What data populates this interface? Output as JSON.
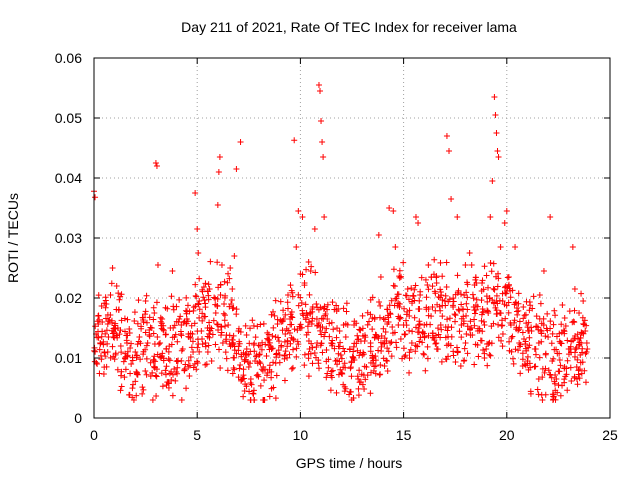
{
  "chart_data": {
    "type": "scatter",
    "title": "Day 211 of 2021, Rate Of TEC Index for receiver lama",
    "xlabel": "GPS time / hours",
    "ylabel": "ROTI / TECUs",
    "xlim": [
      0,
      25
    ],
    "ylim": [
      0,
      0.06
    ],
    "x_ticks": [
      "0",
      "5",
      "10",
      "15",
      "20",
      "25"
    ],
    "y_ticks": [
      "0",
      "0.01",
      "0.02",
      "0.03",
      "0.04",
      "0.05",
      "0.06"
    ],
    "grid": true,
    "marker": "+",
    "color": "#ff0000",
    "series": [
      {
        "name": "ROTI",
        "points": [
          [
            0.0,
            0.0378
          ],
          [
            0.05,
            0.0368
          ],
          [
            0.1,
            0.014
          ],
          [
            0.15,
            0.009
          ],
          [
            0.2,
            0.017
          ],
          [
            0.3,
            0.0125
          ],
          [
            0.4,
            0.016
          ],
          [
            0.5,
            0.011
          ],
          [
            0.6,
            0.019
          ],
          [
            0.7,
            0.0135
          ],
          [
            0.8,
            0.0205
          ],
          [
            0.9,
            0.025
          ],
          [
            1.0,
            0.015
          ],
          [
            1.1,
            0.022
          ],
          [
            1.2,
            0.018
          ],
          [
            1.3,
            0.012
          ],
          [
            1.5,
            0.01
          ],
          [
            1.6,
            0.0125
          ],
          [
            1.8,
            0.009
          ],
          [
            2.0,
            0.011
          ],
          [
            2.2,
            0.0135
          ],
          [
            2.4,
            0.016
          ],
          [
            2.5,
            0.0195
          ],
          [
            2.6,
            0.0125
          ],
          [
            2.8,
            0.015
          ],
          [
            2.9,
            0.0095
          ],
          [
            3.0,
            0.0425
          ],
          [
            3.05,
            0.042
          ],
          [
            3.1,
            0.0255
          ],
          [
            3.2,
            0.0125
          ],
          [
            3.3,
            0.0165
          ],
          [
            3.5,
            0.0115
          ],
          [
            3.6,
            0.006
          ],
          [
            3.7,
            0.015
          ],
          [
            3.8,
            0.0245
          ],
          [
            3.9,
            0.0135
          ],
          [
            4.0,
            0.0095
          ],
          [
            4.1,
            0.016
          ],
          [
            4.3,
            0.0115
          ],
          [
            4.5,
            0.0165
          ],
          [
            4.6,
            0.0135
          ],
          [
            4.8,
            0.011
          ],
          [
            4.9,
            0.0375
          ],
          [
            5.0,
            0.0315
          ],
          [
            5.05,
            0.0275
          ],
          [
            5.1,
            0.0195
          ],
          [
            5.2,
            0.0145
          ],
          [
            5.4,
            0.0125
          ],
          [
            5.5,
            0.015
          ],
          [
            5.6,
            0.0215
          ],
          [
            5.7,
            0.0095
          ],
          [
            5.9,
            0.0175
          ],
          [
            6.0,
            0.0355
          ],
          [
            6.05,
            0.041
          ],
          [
            6.1,
            0.0435
          ],
          [
            6.2,
            0.0255
          ],
          [
            6.3,
            0.019
          ],
          [
            6.5,
            0.0155
          ],
          [
            6.6,
            0.025
          ],
          [
            6.7,
            0.0215
          ],
          [
            6.8,
            0.027
          ],
          [
            6.9,
            0.0415
          ],
          [
            7.0,
            0.0145
          ],
          [
            7.1,
            0.046
          ],
          [
            7.2,
            0.0065
          ],
          [
            7.3,
            0.0045
          ],
          [
            7.4,
            0.0115
          ],
          [
            7.5,
            0.0085
          ],
          [
            7.6,
            0.0065
          ],
          [
            7.8,
            0.0095
          ],
          [
            8.0,
            0.0105
          ],
          [
            8.2,
            0.0085
          ],
          [
            8.4,
            0.0075
          ],
          [
            8.6,
            0.0115
          ],
          [
            8.8,
            0.0135
          ],
          [
            9.0,
            0.0105
          ],
          [
            9.2,
            0.0165
          ],
          [
            9.4,
            0.0205
          ],
          [
            9.5,
            0.0165
          ],
          [
            9.7,
            0.0463
          ],
          [
            9.8,
            0.0285
          ],
          [
            9.9,
            0.0345
          ],
          [
            10.0,
            0.024
          ],
          [
            10.1,
            0.0335
          ],
          [
            10.2,
            0.0225
          ],
          [
            10.3,
            0.0175
          ],
          [
            10.4,
            0.026
          ],
          [
            10.5,
            0.0245
          ],
          [
            10.6,
            0.0185
          ],
          [
            10.7,
            0.0315
          ],
          [
            10.8,
            0.0165
          ],
          [
            10.9,
            0.0555
          ],
          [
            10.95,
            0.0545
          ],
          [
            11.0,
            0.0495
          ],
          [
            11.05,
            0.046
          ],
          [
            11.1,
            0.0435
          ],
          [
            11.15,
            0.0335
          ],
          [
            11.3,
            0.0165
          ],
          [
            11.5,
            0.0125
          ],
          [
            11.7,
            0.0095
          ],
          [
            11.9,
            0.0145
          ],
          [
            12.0,
            0.0075
          ],
          [
            12.2,
            0.0135
          ],
          [
            12.4,
            0.0115
          ],
          [
            12.6,
            0.0155
          ],
          [
            12.8,
            0.0065
          ],
          [
            13.0,
            0.0105
          ],
          [
            13.2,
            0.0085
          ],
          [
            13.4,
            0.0125
          ],
          [
            13.6,
            0.0165
          ],
          [
            13.8,
            0.0305
          ],
          [
            13.9,
            0.0235
          ],
          [
            14.0,
            0.0125
          ],
          [
            14.2,
            0.0095
          ],
          [
            14.3,
            0.035
          ],
          [
            14.5,
            0.0345
          ],
          [
            14.6,
            0.0285
          ],
          [
            14.8,
            0.0185
          ],
          [
            15.0,
            0.0155
          ],
          [
            15.2,
            0.0215
          ],
          [
            15.4,
            0.0125
          ],
          [
            15.6,
            0.0335
          ],
          [
            15.7,
            0.0325
          ],
          [
            15.8,
            0.0205
          ],
          [
            16.0,
            0.0155
          ],
          [
            16.2,
            0.0255
          ],
          [
            16.4,
            0.0185
          ],
          [
            16.6,
            0.0225
          ],
          [
            16.8,
            0.0155
          ],
          [
            17.0,
            0.0195
          ],
          [
            17.1,
            0.047
          ],
          [
            17.2,
            0.0445
          ],
          [
            17.3,
            0.0365
          ],
          [
            17.4,
            0.0185
          ],
          [
            17.6,
            0.0335
          ],
          [
            17.8,
            0.0155
          ],
          [
            18.0,
            0.0125
          ],
          [
            18.2,
            0.0275
          ],
          [
            18.3,
            0.0255
          ],
          [
            18.4,
            0.0185
          ],
          [
            18.6,
            0.0145
          ],
          [
            18.8,
            0.0225
          ],
          [
            19.0,
            0.0115
          ],
          [
            19.1,
            0.0175
          ],
          [
            19.2,
            0.0335
          ],
          [
            19.3,
            0.0395
          ],
          [
            19.4,
            0.0535
          ],
          [
            19.45,
            0.0505
          ],
          [
            19.5,
            0.0475
          ],
          [
            19.55,
            0.0445
          ],
          [
            19.6,
            0.0435
          ],
          [
            19.7,
            0.0285
          ],
          [
            19.8,
            0.0195
          ],
          [
            19.9,
            0.0325
          ],
          [
            20.0,
            0.0345
          ],
          [
            20.1,
            0.0235
          ],
          [
            20.2,
            0.0155
          ],
          [
            20.4,
            0.0285
          ],
          [
            20.6,
            0.0125
          ],
          [
            20.8,
            0.0185
          ],
          [
            21.0,
            0.0095
          ],
          [
            21.2,
            0.0145
          ],
          [
            21.4,
            0.0115
          ],
          [
            21.6,
            0.0205
          ],
          [
            21.8,
            0.0245
          ],
          [
            22.0,
            0.0135
          ],
          [
            22.1,
            0.0335
          ],
          [
            22.2,
            0.0095
          ],
          [
            22.4,
            0.0065
          ],
          [
            22.6,
            0.0125
          ],
          [
            22.8,
            0.0085
          ],
          [
            23.0,
            0.0115
          ],
          [
            23.2,
            0.0285
          ],
          [
            23.3,
            0.0215
          ],
          [
            23.4,
            0.0065
          ],
          [
            23.5,
            0.0175
          ],
          [
            23.6,
            0.0125
          ],
          [
            23.7,
            0.0195
          ],
          [
            23.8,
            0.0145
          ],
          [
            23.9,
            0.0115
          ]
        ],
        "baseline_points": [
          [
            0.0,
            0.012
          ],
          [
            0.5,
            0.014
          ],
          [
            1.0,
            0.016
          ],
          [
            1.5,
            0.012
          ],
          [
            2.0,
            0.01
          ],
          [
            2.5,
            0.013
          ],
          [
            3.0,
            0.012
          ],
          [
            3.5,
            0.011
          ],
          [
            4.0,
            0.012
          ],
          [
            4.5,
            0.013
          ],
          [
            5.0,
            0.016
          ],
          [
            5.5,
            0.017
          ],
          [
            6.0,
            0.018
          ],
          [
            6.5,
            0.017
          ],
          [
            7.0,
            0.011
          ],
          [
            7.5,
            0.008
          ],
          [
            8.0,
            0.009
          ],
          [
            8.5,
            0.009
          ],
          [
            9.0,
            0.012
          ],
          [
            9.5,
            0.014
          ],
          [
            10.0,
            0.017
          ],
          [
            10.5,
            0.016
          ],
          [
            11.0,
            0.014
          ],
          [
            11.5,
            0.012
          ],
          [
            12.0,
            0.011
          ],
          [
            12.5,
            0.01
          ],
          [
            13.0,
            0.011
          ],
          [
            13.5,
            0.012
          ],
          [
            14.0,
            0.013
          ],
          [
            14.5,
            0.016
          ],
          [
            15.0,
            0.017
          ],
          [
            15.5,
            0.016
          ],
          [
            16.0,
            0.017
          ],
          [
            16.5,
            0.018
          ],
          [
            17.0,
            0.017
          ],
          [
            17.5,
            0.015
          ],
          [
            18.0,
            0.016
          ],
          [
            18.5,
            0.017
          ],
          [
            19.0,
            0.016
          ],
          [
            19.5,
            0.018
          ],
          [
            20.0,
            0.017
          ],
          [
            20.5,
            0.015
          ],
          [
            21.0,
            0.013
          ],
          [
            21.5,
            0.012
          ],
          [
            22.0,
            0.011
          ],
          [
            22.5,
            0.01
          ],
          [
            23.0,
            0.01
          ],
          [
            23.5,
            0.012
          ],
          [
            23.9,
            0.013
          ]
        ]
      }
    ]
  }
}
